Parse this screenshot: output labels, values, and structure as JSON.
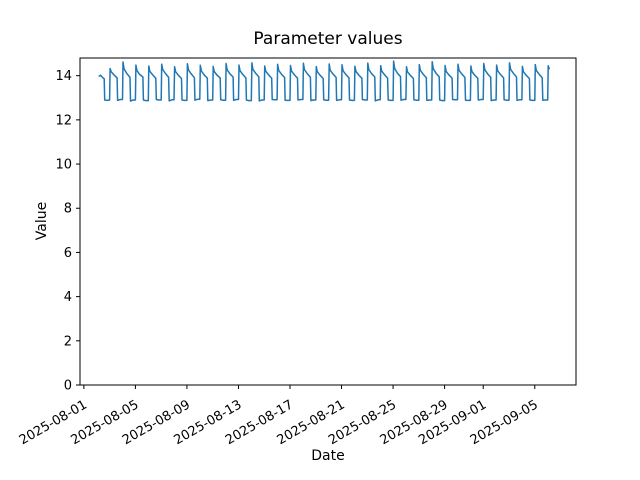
{
  "chart_data": {
    "type": "line",
    "title": "Parameter values",
    "xlabel": "Date",
    "ylabel": "Value",
    "line_color": "#1f77b4",
    "background_color": "#ffffff",
    "grid": false,
    "legend": null,
    "x_axis": {
      "epoch_date": "2025-08-01",
      "tick_labels": [
        "2025-08-01",
        "2025-08-05",
        "2025-08-09",
        "2025-08-13",
        "2025-08-17",
        "2025-08-21",
        "2025-08-25",
        "2025-08-29",
        "2025-09-01",
        "2025-09-05"
      ],
      "tick_day_offsets": [
        0,
        4,
        8,
        12,
        16,
        20,
        24,
        28,
        31,
        35
      ],
      "xlim_days": [
        -0.3,
        38.2
      ],
      "tick_rotation_deg": 30
    },
    "y_axis": {
      "ticks": [
        0,
        2,
        4,
        6,
        8,
        10,
        12,
        14
      ],
      "ylim": [
        0,
        14.8
      ]
    },
    "series": [
      {
        "name": "parameter-values",
        "lead_in": {
          "x": [
            1.2,
            1.28,
            1.45,
            1.58,
            1.62,
            1.82
          ],
          "y": [
            13.98,
            14.02,
            13.92,
            13.86,
            12.9,
            12.88
          ]
        },
        "daily": {
          "start_day": 2,
          "intraday_offsets": [
            0.0,
            0.04,
            0.12,
            0.33,
            0.58,
            0.62,
            0.82
          ],
          "values": [
            [
              12.9,
              14.32,
              14.18,
              14.04,
              13.9,
              12.88,
              12.92
            ],
            [
              12.92,
              14.62,
              14.3,
              14.1,
              13.92,
              12.85,
              12.9
            ],
            [
              12.9,
              14.48,
              14.24,
              14.06,
              13.94,
              12.9,
              12.87
            ],
            [
              12.87,
              14.44,
              14.2,
              14.05,
              13.88,
              12.92,
              12.9
            ],
            [
              12.9,
              14.52,
              14.28,
              14.1,
              13.93,
              12.86,
              12.91
            ],
            [
              12.91,
              14.4,
              14.18,
              14.02,
              13.87,
              12.9,
              12.88
            ],
            [
              12.88,
              14.54,
              14.26,
              14.08,
              13.91,
              12.89,
              12.93
            ],
            [
              12.93,
              14.47,
              14.21,
              14.04,
              13.89,
              12.87,
              12.9
            ],
            [
              12.9,
              14.42,
              14.19,
              14.03,
              13.9,
              12.91,
              12.89
            ],
            [
              12.89,
              14.55,
              14.27,
              14.09,
              13.94,
              12.88,
              12.92
            ],
            [
              12.92,
              14.48,
              14.23,
              14.06,
              13.9,
              12.9,
              12.87
            ],
            [
              12.87,
              14.58,
              14.29,
              14.11,
              13.95,
              12.86,
              12.9
            ],
            [
              12.9,
              14.44,
              14.2,
              14.04,
              13.88,
              12.92,
              12.91
            ],
            [
              12.91,
              14.51,
              14.24,
              14.07,
              13.92,
              12.89,
              12.88
            ],
            [
              12.88,
              14.46,
              14.21,
              14.05,
              13.89,
              12.9,
              12.92
            ],
            [
              12.92,
              14.56,
              14.28,
              14.1,
              13.93,
              12.87,
              12.9
            ],
            [
              12.9,
              14.41,
              14.18,
              14.02,
              13.87,
              12.91,
              12.89
            ],
            [
              12.89,
              14.53,
              14.25,
              14.08,
              13.92,
              12.88,
              12.91
            ],
            [
              12.91,
              14.49,
              14.22,
              14.06,
              13.9,
              12.9,
              12.88
            ],
            [
              12.88,
              14.43,
              14.19,
              14.03,
              13.88,
              12.92,
              12.9
            ],
            [
              12.9,
              14.57,
              14.28,
              14.1,
              13.94,
              12.86,
              12.91
            ],
            [
              12.91,
              14.45,
              14.21,
              14.05,
              13.89,
              12.9,
              12.88
            ],
            [
              12.88,
              14.66,
              14.33,
              14.12,
              13.96,
              12.89,
              12.92
            ],
            [
              12.92,
              14.4,
              14.17,
              14.02,
              13.87,
              12.91,
              12.89
            ],
            [
              12.89,
              14.5,
              14.24,
              14.07,
              13.91,
              12.88,
              12.9
            ],
            [
              12.9,
              14.63,
              14.31,
              14.11,
              13.95,
              12.9,
              12.87
            ],
            [
              12.87,
              14.46,
              14.2,
              14.04,
              13.89,
              12.92,
              12.91
            ],
            [
              12.91,
              14.52,
              14.25,
              14.08,
              13.92,
              12.89,
              12.88
            ],
            [
              12.88,
              14.44,
              14.19,
              14.03,
              13.88,
              12.9,
              12.92
            ],
            [
              12.92,
              14.55,
              14.27,
              14.09,
              13.93,
              12.87,
              12.9
            ],
            [
              12.9,
              14.48,
              14.22,
              14.06,
              13.9,
              12.91,
              12.89
            ],
            [
              12.89,
              14.58,
              14.29,
              14.11,
              13.94,
              12.88,
              12.91
            ],
            [
              12.91,
              14.42,
              14.18,
              14.02,
              13.87,
              12.9,
              12.88
            ],
            [
              12.88,
              14.5,
              14.24,
              14.07,
              13.91,
              12.89,
              12.9
            ]
          ]
        },
        "tail": {
          "x": [
            36.0,
            36.04,
            36.12
          ],
          "y": [
            12.9,
            14.45,
            14.32
          ]
        }
      }
    ]
  }
}
